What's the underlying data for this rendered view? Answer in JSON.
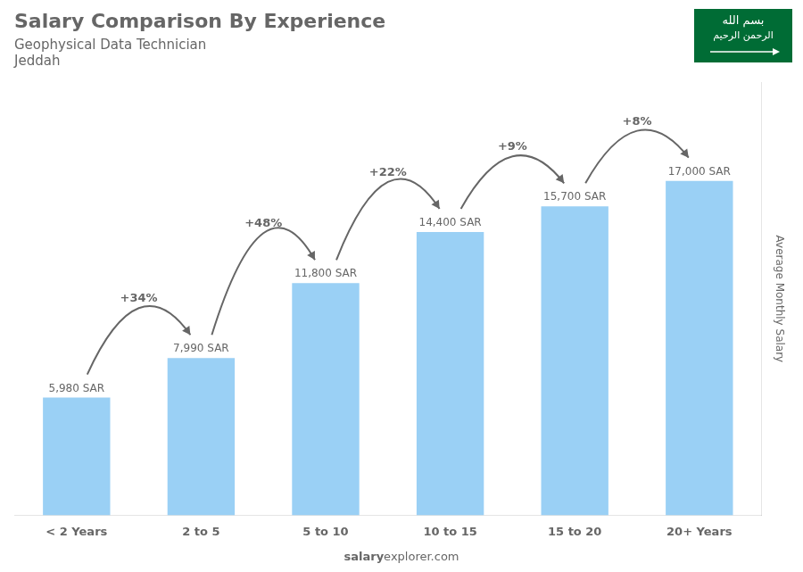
{
  "chart_data": {
    "type": "bar",
    "title": "Salary Comparison By Experience",
    "subtitle": [
      "Geophysical Data Technician",
      "Jeddah"
    ],
    "ylabel": "Average Monthly Salary",
    "categories": [
      "< 2 Years",
      "2 to 5",
      "5 to 10",
      "10 to 15",
      "15 to 20",
      "20+ Years"
    ],
    "values": [
      5980,
      7990,
      11800,
      14400,
      15700,
      17000
    ],
    "value_labels": [
      "5,980 SAR",
      "7,990 SAR",
      "11,800 SAR",
      "14,400 SAR",
      "15,700 SAR",
      "17,000 SAR"
    ],
    "data_labels": true,
    "ylim": [
      0,
      22000
    ],
    "grid": false,
    "tick_labels": "x",
    "annotations": [
      {
        "text": "+34%",
        "from": "< 2 Years",
        "to": "2 to 5"
      },
      {
        "text": "+48%",
        "from": "2 to 5",
        "to": "5 to 10"
      },
      {
        "text": "+22%",
        "from": "5 to 10",
        "to": "10 to 15"
      },
      {
        "text": "+9%",
        "from": "10 to 15",
        "to": "15 to 20"
      },
      {
        "text": "+8%",
        "from": "15 to 20",
        "to": "20+ Years"
      }
    ],
    "footer": [
      "salary",
      "explorer.com"
    ],
    "emblem": {
      "texts": [
        "بسم الله",
        "الرحمن الرحيم"
      ],
      "color": "#006c35"
    }
  }
}
